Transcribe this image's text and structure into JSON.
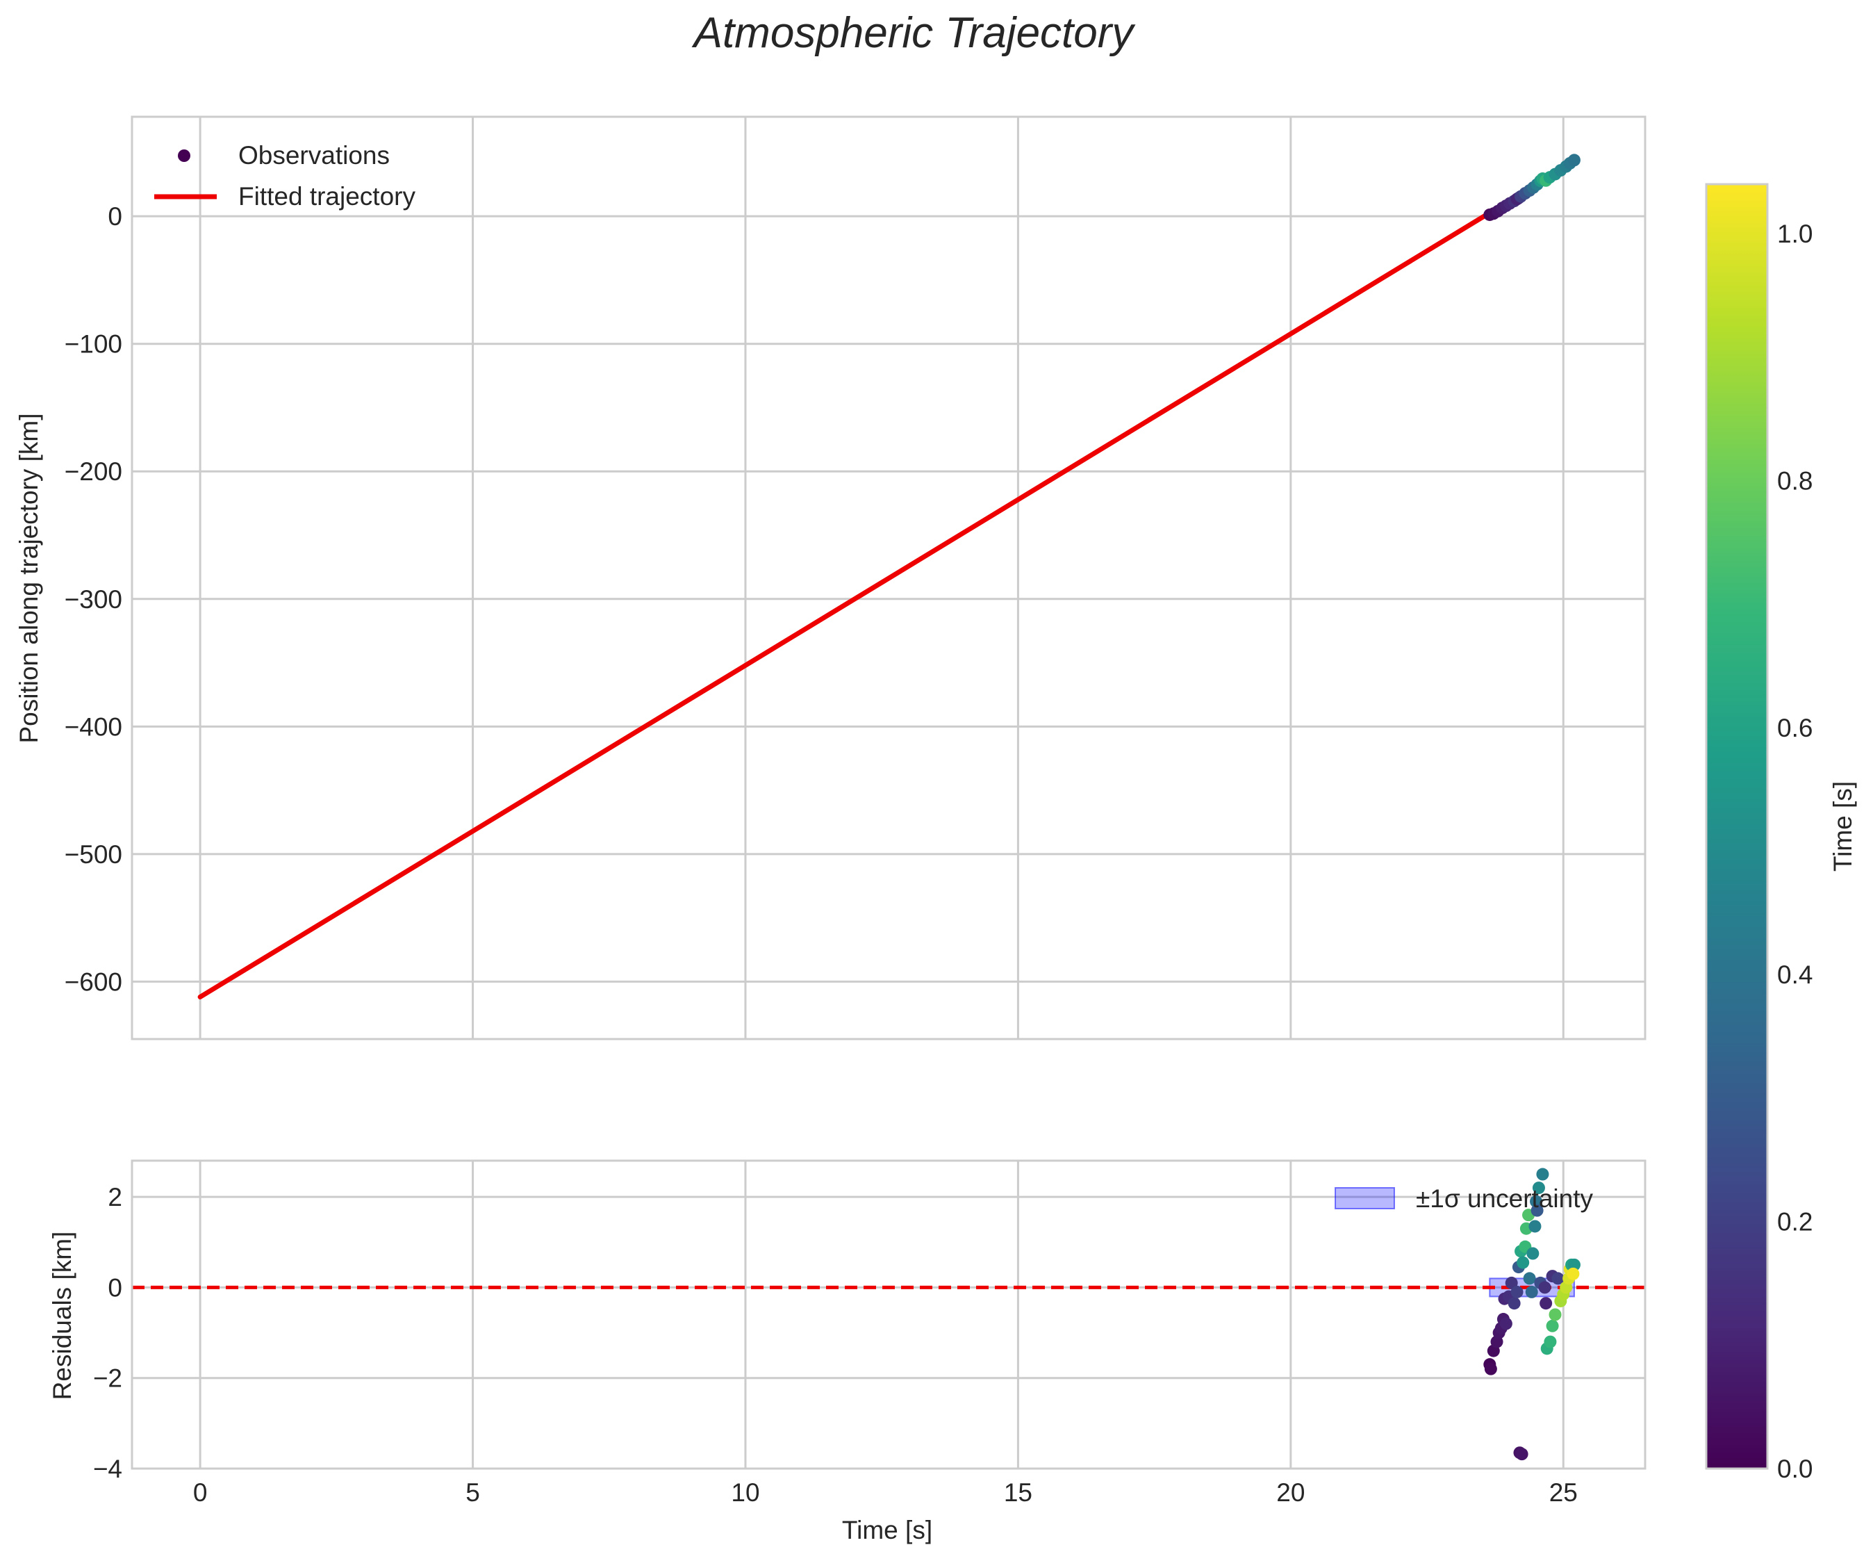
{
  "colors": {
    "fit_line": "#ee0000",
    "zero_line": "#ee0000",
    "band_fill": "#0000ff",
    "grid": "#cccccc",
    "spine": "#cccccc",
    "text": "#262626"
  },
  "colormap": {
    "name": "viridis",
    "stops": [
      "#440154",
      "#482878",
      "#3e4989",
      "#31688e",
      "#26828e",
      "#1f9e89",
      "#35b779",
      "#6ece58",
      "#b5de2b",
      "#fde725"
    ]
  },
  "chart_data": [
    {
      "id": "main",
      "type": "scatter+line",
      "title": "Atmospheric Trajectory",
      "xlabel": "",
      "ylabel": "Position along trajectory [km]",
      "xlim": [
        -1.25,
        26.5
      ],
      "ylim": [
        -645,
        78
      ],
      "xticks": [
        0,
        5,
        10,
        15,
        20,
        25
      ],
      "yticks": [
        0,
        -100,
        -200,
        -300,
        -400,
        -500,
        -600
      ],
      "ytick_labels": [
        "0",
        "−100",
        "−200",
        "−300",
        "−400",
        "−500",
        "−600"
      ],
      "grid": true,
      "legend": {
        "location": "upper-left",
        "entries": [
          "Observations",
          "Fitted trajectory"
        ]
      },
      "fitted_trajectory": {
        "name": "Fitted trajectory",
        "x": [
          0,
          25.2
        ],
        "y": [
          -612,
          43
        ]
      },
      "observations": {
        "name": "Observations",
        "points": [
          {
            "x": 23.65,
            "y": 1.2,
            "c": 0.02
          },
          {
            "x": 23.72,
            "y": 2.1,
            "c": 0.04
          },
          {
            "x": 23.8,
            "y": 4.0,
            "c": 0.06
          },
          {
            "x": 23.88,
            "y": 6.5,
            "c": 0.08
          },
          {
            "x": 23.95,
            "y": 8.2,
            "c": 0.1
          },
          {
            "x": 24.02,
            "y": 10.1,
            "c": 0.12
          },
          {
            "x": 24.1,
            "y": 12.0,
            "c": 0.15
          },
          {
            "x": 24.18,
            "y": 14.3,
            "c": 0.17
          },
          {
            "x": 24.15,
            "y": 13.5,
            "c": 0.1
          },
          {
            "x": 24.22,
            "y": 15.5,
            "c": 0.2
          },
          {
            "x": 24.3,
            "y": 18.0,
            "c": 0.26
          },
          {
            "x": 24.38,
            "y": 20.2,
            "c": 0.32
          },
          {
            "x": 24.45,
            "y": 22.5,
            "c": 0.38
          },
          {
            "x": 24.52,
            "y": 25.0,
            "c": 0.45
          },
          {
            "x": 24.58,
            "y": 27.8,
            "c": 0.55
          },
          {
            "x": 24.62,
            "y": 29.5,
            "c": 0.62
          },
          {
            "x": 24.68,
            "y": 28.0,
            "c": 0.7
          },
          {
            "x": 24.75,
            "y": 30.5,
            "c": 0.6
          },
          {
            "x": 24.85,
            "y": 33.0,
            "c": 0.52
          },
          {
            "x": 24.95,
            "y": 36.0,
            "c": 0.48
          },
          {
            "x": 25.05,
            "y": 39.0,
            "c": 0.45
          },
          {
            "x": 25.12,
            "y": 41.5,
            "c": 0.42
          },
          {
            "x": 25.2,
            "y": 44.0,
            "c": 0.4
          }
        ]
      }
    },
    {
      "id": "residuals",
      "type": "scatter",
      "title": "",
      "xlabel": "Time [s]",
      "ylabel": "Residuals [km]",
      "xlim": [
        -1.25,
        26.5
      ],
      "ylim": [
        -4,
        2.8
      ],
      "xticks": [
        0,
        5,
        10,
        15,
        20,
        25
      ],
      "xtick_labels": [
        "0",
        "5",
        "10",
        "15",
        "20",
        "25"
      ],
      "yticks": [
        2,
        0,
        -2,
        -4
      ],
      "ytick_labels": [
        "2",
        "0",
        "−2",
        "−4"
      ],
      "grid": true,
      "zero_line": {
        "y": 0,
        "style": "dashed"
      },
      "uncertainty_band": {
        "name": "±1σ uncertainty",
        "x": [
          23.65,
          25.2
        ],
        "y": [
          -0.2,
          0.2
        ]
      },
      "legend": {
        "location": "upper-right",
        "entries": [
          "±1σ uncertainty"
        ]
      },
      "points": [
        {
          "x": 23.65,
          "y": -1.7,
          "c": 0.01
        },
        {
          "x": 23.67,
          "y": -1.8,
          "c": 0.02
        },
        {
          "x": 23.72,
          "y": -1.4,
          "c": 0.03
        },
        {
          "x": 23.78,
          "y": -1.2,
          "c": 0.05
        },
        {
          "x": 23.82,
          "y": -1.0,
          "c": 0.06
        },
        {
          "x": 23.86,
          "y": -0.9,
          "c": 0.07
        },
        {
          "x": 23.9,
          "y": -0.7,
          "c": 0.08
        },
        {
          "x": 23.95,
          "y": -0.8,
          "c": 0.1
        },
        {
          "x": 23.92,
          "y": -0.25,
          "c": 0.12
        },
        {
          "x": 24.0,
          "y": -0.2,
          "c": 0.14
        },
        {
          "x": 24.05,
          "y": 0.1,
          "c": 0.16
        },
        {
          "x": 24.1,
          "y": -0.35,
          "c": 0.18
        },
        {
          "x": 24.15,
          "y": -0.1,
          "c": 0.2
        },
        {
          "x": 24.18,
          "y": 0.45,
          "c": 0.3
        },
        {
          "x": 24.2,
          "y": -3.65,
          "c": 0.05
        },
        {
          "x": 24.24,
          "y": -3.68,
          "c": 0.06
        },
        {
          "x": 24.22,
          "y": 0.8,
          "c": 0.62
        },
        {
          "x": 24.26,
          "y": 0.55,
          "c": 0.55
        },
        {
          "x": 24.3,
          "y": 0.9,
          "c": 0.7
        },
        {
          "x": 24.32,
          "y": 1.3,
          "c": 0.72
        },
        {
          "x": 24.36,
          "y": 1.6,
          "c": 0.75
        },
        {
          "x": 24.38,
          "y": 0.2,
          "c": 0.4
        },
        {
          "x": 24.42,
          "y": -0.1,
          "c": 0.35
        },
        {
          "x": 24.44,
          "y": 0.75,
          "c": 0.5
        },
        {
          "x": 24.48,
          "y": 1.35,
          "c": 0.45
        },
        {
          "x": 24.5,
          "y": 1.9,
          "c": 0.4
        },
        {
          "x": 24.52,
          "y": 1.7,
          "c": 0.3
        },
        {
          "x": 24.55,
          "y": 2.2,
          "c": 0.5
        },
        {
          "x": 24.58,
          "y": 0.1,
          "c": 0.25
        },
        {
          "x": 24.62,
          "y": 2.5,
          "c": 0.45
        },
        {
          "x": 24.66,
          "y": 0.0,
          "c": 0.15
        },
        {
          "x": 24.68,
          "y": -0.35,
          "c": 0.1
        },
        {
          "x": 24.7,
          "y": -1.35,
          "c": 0.65
        },
        {
          "x": 24.76,
          "y": -1.2,
          "c": 0.68
        },
        {
          "x": 24.8,
          "y": -0.85,
          "c": 0.72
        },
        {
          "x": 24.85,
          "y": -0.6,
          "c": 0.78
        },
        {
          "x": 24.8,
          "y": 0.25,
          "c": 0.15
        },
        {
          "x": 24.9,
          "y": 0.2,
          "c": 0.2
        },
        {
          "x": 24.95,
          "y": -0.3,
          "c": 0.9
        },
        {
          "x": 25.0,
          "y": -0.15,
          "c": 0.92
        },
        {
          "x": 25.05,
          "y": 0.0,
          "c": 0.95
        },
        {
          "x": 25.1,
          "y": 0.2,
          "c": 0.98
        },
        {
          "x": 25.12,
          "y": 0.4,
          "c": 1.0
        },
        {
          "x": 25.15,
          "y": 0.5,
          "c": 0.6
        },
        {
          "x": 25.2,
          "y": 0.5,
          "c": 0.55
        },
        {
          "x": 25.18,
          "y": 0.3,
          "c": 1.02
        }
      ]
    },
    {
      "id": "colorbar",
      "type": "colorbar",
      "label": "Time [s]",
      "range": [
        0,
        1.04
      ],
      "ticks": [
        0.0,
        0.2,
        0.4,
        0.6,
        0.8,
        1.0
      ],
      "tick_labels": [
        "0.0",
        "0.2",
        "0.4",
        "0.6",
        "0.8",
        "1.0"
      ]
    }
  ]
}
